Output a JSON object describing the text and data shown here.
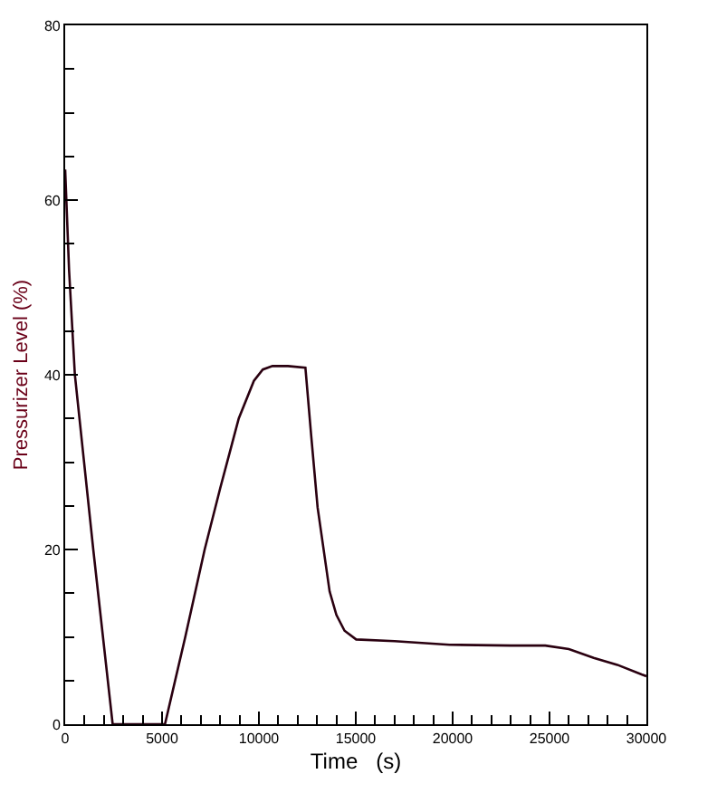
{
  "chart_data": {
    "type": "line",
    "xlabel": "Time   (s)",
    "ylabel": "Pressurizer Level (%)",
    "xlim": [
      0,
      30000
    ],
    "xticks": [
      0,
      5000,
      10000,
      15000,
      20000,
      25000,
      30000
    ],
    "ylim": [
      0,
      80
    ],
    "yticks": [
      0,
      20,
      40,
      60,
      80
    ],
    "grid": false,
    "marker": "none",
    "line_style": "solid",
    "series": [
      {
        "color": "#2a0010",
        "x": [
          0,
          200,
          500,
          1450,
          2450,
          5150,
          6200,
          7200,
          8000,
          8960,
          9740,
          10200,
          10700,
          11500,
          12400,
          12700,
          13030,
          13650,
          14000,
          14420,
          15020,
          17000,
          19840,
          23000,
          24780,
          26000,
          27280,
          28500,
          29750,
          30000
        ],
        "values": [
          63.5,
          52,
          40,
          20,
          0,
          0,
          10,
          20,
          27,
          35,
          39.3,
          40.6,
          41,
          41,
          40.8,
          33,
          24.8,
          15.2,
          12.5,
          10.7,
          9.7,
          9.5,
          9.1,
          9.0,
          9.0,
          8.6,
          7.6,
          6.8,
          5.7,
          5.5
        ]
      }
    ]
  }
}
